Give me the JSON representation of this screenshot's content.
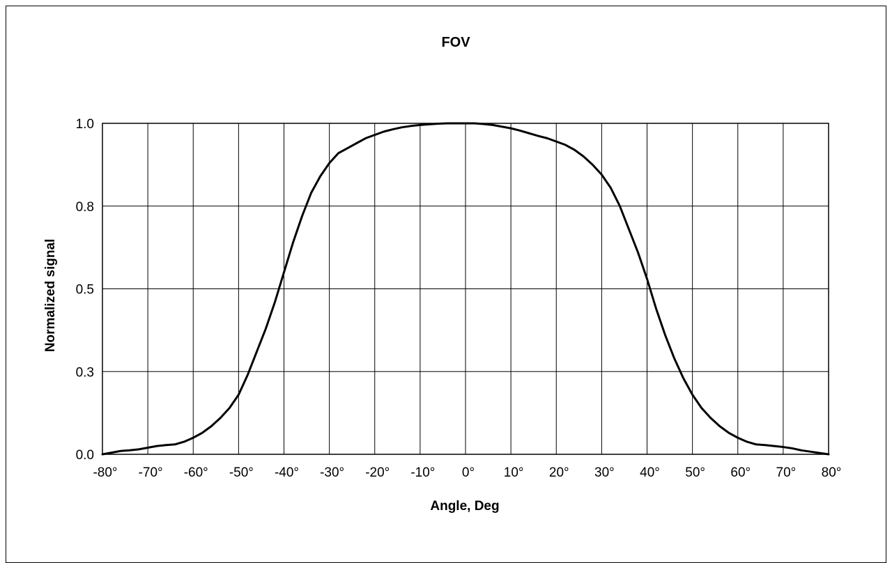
{
  "chart_data": {
    "type": "line",
    "title": "FOV",
    "xlabel": "Angle, Deg",
    "ylabel": "Normalized signal",
    "xlim": [
      -80,
      80
    ],
    "ylim": [
      0,
      1
    ],
    "grid": true,
    "x_ticks": [
      -80,
      -70,
      -60,
      -50,
      -40,
      -30,
      -20,
      -10,
      0,
      10,
      20,
      30,
      40,
      50,
      60,
      70,
      80
    ],
    "x_tick_labels": [
      "-80°",
      "-70°",
      "-60°",
      "-50°",
      "-40°",
      "-30°",
      "-20°",
      "-10°",
      "0°",
      "10°",
      "20°",
      "30°",
      "40°",
      "50°",
      "60°",
      "70°",
      "80°"
    ],
    "y_ticks": [
      0,
      0.25,
      0.5,
      0.75,
      1.0
    ],
    "y_tick_labels": [
      "0.0",
      "0.3",
      "0.5",
      "0.8",
      "1.0"
    ],
    "series": [
      {
        "color": "#000000",
        "x": [
          -80,
          -78,
          -76,
          -74,
          -72,
          -70,
          -68,
          -66,
          -64,
          -62,
          -60,
          -58,
          -56,
          -54,
          -52,
          -50,
          -48,
          -46,
          -44,
          -42,
          -40,
          -38,
          -36,
          -34,
          -32,
          -30,
          -28,
          -26,
          -24,
          -22,
          -20,
          -18,
          -16,
          -14,
          -12,
          -10,
          -8,
          -6,
          -4,
          -2,
          0,
          2,
          4,
          6,
          8,
          10,
          12,
          14,
          16,
          18,
          20,
          22,
          24,
          26,
          28,
          30,
          32,
          34,
          36,
          38,
          40,
          42,
          44,
          46,
          48,
          50,
          52,
          54,
          56,
          58,
          60,
          62,
          64,
          66,
          68,
          70,
          72,
          74,
          76,
          78,
          80
        ],
        "y": [
          0.0,
          0.005,
          0.01,
          0.012,
          0.015,
          0.02,
          0.025,
          0.028,
          0.03,
          0.038,
          0.05,
          0.065,
          0.085,
          0.11,
          0.14,
          0.18,
          0.24,
          0.31,
          0.38,
          0.46,
          0.55,
          0.64,
          0.72,
          0.79,
          0.84,
          0.88,
          0.91,
          0.925,
          0.94,
          0.955,
          0.965,
          0.975,
          0.982,
          0.988,
          0.992,
          0.995,
          0.997,
          0.999,
          1.0,
          1.0,
          1.0,
          1.0,
          0.998,
          0.995,
          0.99,
          0.985,
          0.978,
          0.97,
          0.962,
          0.955,
          0.945,
          0.935,
          0.92,
          0.9,
          0.875,
          0.845,
          0.805,
          0.75,
          0.68,
          0.61,
          0.53,
          0.44,
          0.36,
          0.29,
          0.23,
          0.18,
          0.14,
          0.11,
          0.085,
          0.065,
          0.05,
          0.038,
          0.03,
          0.028,
          0.025,
          0.022,
          0.018,
          0.012,
          0.008,
          0.004,
          0.0
        ]
      }
    ]
  }
}
